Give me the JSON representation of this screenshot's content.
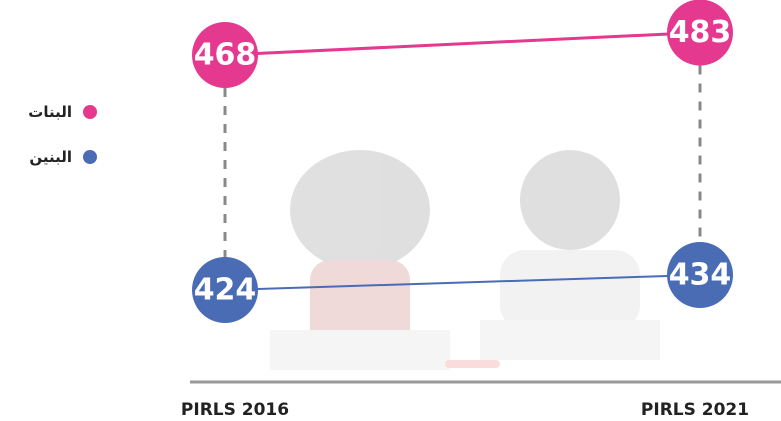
{
  "chart_data": {
    "type": "dumbbell",
    "categories": [
      "PIRLS 2016",
      "PIRLS 2021"
    ],
    "series": [
      {
        "name": "البنات",
        "color": "#e5388f",
        "values": [
          468,
          483
        ]
      },
      {
        "name": "البنين",
        "color": "#4a6cb5",
        "values": [
          424,
          434
        ]
      }
    ]
  }
}
